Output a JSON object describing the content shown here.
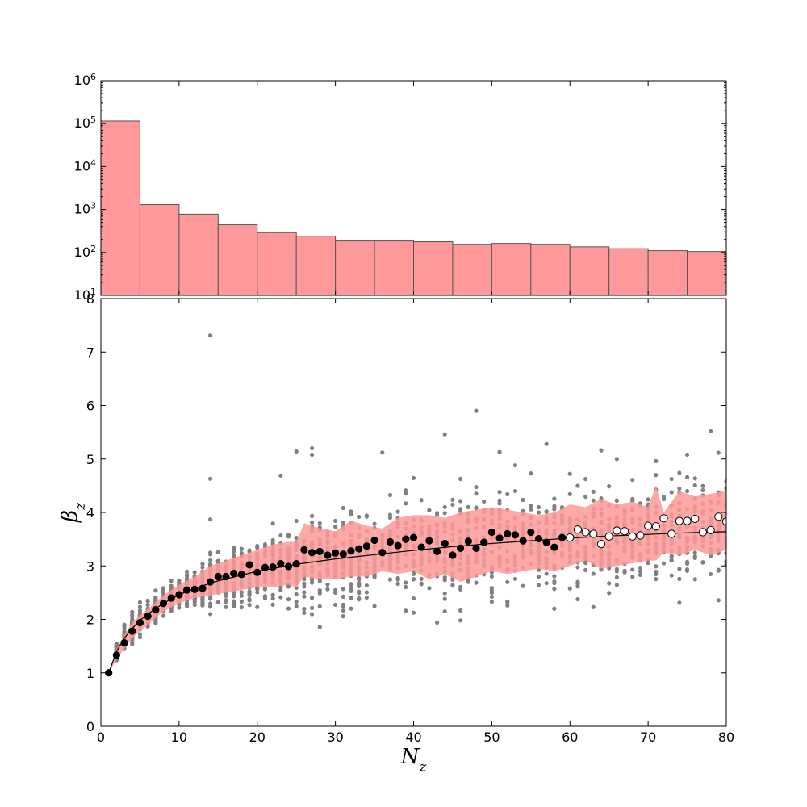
{
  "chart_data": [
    {
      "type": "bar",
      "yscale": "log",
      "xlim": [
        0,
        80
      ],
      "ylim_exp": [
        1,
        6
      ],
      "y_tick_exponents": [
        1,
        2,
        3,
        4,
        5,
        6
      ],
      "bin_width": 5,
      "bin_starts": [
        0,
        5,
        10,
        15,
        20,
        25,
        30,
        35,
        40,
        45,
        50,
        55,
        60,
        65,
        70,
        75
      ],
      "values": [
        115000,
        1300,
        780,
        440,
        290,
        240,
        185,
        185,
        178,
        155,
        162,
        155,
        135,
        122,
        110,
        105
      ],
      "colors": {
        "fill": "#ff9999",
        "edge": "#555555"
      }
    },
    {
      "type": "scatter",
      "xlim": [
        0,
        80
      ],
      "ylim": [
        0,
        8
      ],
      "x_ticks": [
        0,
        10,
        20,
        30,
        40,
        50,
        60,
        70,
        80
      ],
      "y_ticks": [
        0,
        1,
        2,
        3,
        4,
        5,
        6,
        7,
        8
      ],
      "xlabel": "N",
      "xlabel_sub": "z",
      "ylabel": "β",
      "ylabel_sub": "z",
      "colors": {
        "band": "#ff9999",
        "cloud": "#808080",
        "mean": "#000000",
        "fit": "#000000"
      },
      "filled_mean": {
        "x": [
          1,
          2,
          3,
          4,
          5,
          6,
          7,
          8,
          9,
          10,
          11,
          12,
          13,
          14,
          15,
          16,
          17,
          18,
          19,
          20,
          21,
          22,
          23,
          24,
          25,
          26,
          27,
          28,
          29,
          30,
          31,
          32,
          33,
          34,
          35,
          36,
          37,
          38,
          39,
          40,
          41,
          42,
          43,
          44,
          45,
          46,
          47,
          48,
          49,
          50,
          51,
          52,
          53,
          54,
          55,
          56,
          57,
          58,
          59
        ],
        "y": [
          1.0,
          1.33,
          1.56,
          1.78,
          1.94,
          2.06,
          2.18,
          2.3,
          2.4,
          2.46,
          2.55,
          2.56,
          2.58,
          2.7,
          2.8,
          2.8,
          2.86,
          2.84,
          3.02,
          2.88,
          2.97,
          2.98,
          3.04,
          2.99,
          3.04,
          3.3,
          3.25,
          3.27,
          3.2,
          3.24,
          3.22,
          3.28,
          3.32,
          3.37,
          3.48,
          3.25,
          3.45,
          3.38,
          3.5,
          3.53,
          3.35,
          3.47,
          3.27,
          3.42,
          3.2,
          3.33,
          3.46,
          3.33,
          3.44,
          3.63,
          3.52,
          3.6,
          3.58,
          3.47,
          3.63,
          3.51,
          3.44,
          3.35,
          3.53
        ]
      },
      "open_mean": {
        "x": [
          60,
          61,
          62,
          63,
          64,
          65,
          66,
          67,
          68,
          69,
          70,
          71,
          72,
          73,
          74,
          75,
          76,
          77,
          78,
          79,
          80
        ],
        "y": [
          3.53,
          3.68,
          3.63,
          3.6,
          3.41,
          3.55,
          3.66,
          3.65,
          3.55,
          3.57,
          3.75,
          3.74,
          3.89,
          3.6,
          3.84,
          3.84,
          3.88,
          3.63,
          3.67,
          3.92,
          3.83
        ]
      },
      "band": {
        "x": [
          1,
          2,
          4,
          6,
          8,
          10,
          12,
          14,
          16,
          18,
          20,
          22,
          24,
          25,
          26,
          28,
          30,
          32,
          34,
          36,
          38,
          40,
          42,
          44,
          46,
          48,
          50,
          52,
          54,
          56,
          58,
          60,
          62,
          64,
          66,
          68,
          70,
          71,
          72,
          74,
          76,
          78,
          80
        ],
        "upper": [
          1.0,
          1.45,
          1.95,
          2.2,
          2.45,
          2.65,
          2.8,
          3.0,
          3.1,
          3.2,
          3.3,
          3.4,
          3.45,
          3.45,
          3.8,
          3.7,
          3.65,
          3.85,
          3.75,
          3.7,
          3.9,
          3.95,
          3.95,
          3.9,
          4.0,
          4.05,
          4.1,
          4.05,
          4.0,
          3.95,
          4.0,
          4.15,
          4.1,
          4.25,
          4.15,
          4.2,
          4.1,
          4.5,
          4.0,
          4.4,
          4.3,
          4.35,
          4.4
        ],
        "lower": [
          1.0,
          1.25,
          1.65,
          1.9,
          2.15,
          2.3,
          2.4,
          2.45,
          2.5,
          2.55,
          2.6,
          2.6,
          2.65,
          2.6,
          2.8,
          2.75,
          2.75,
          2.8,
          2.8,
          2.9,
          2.85,
          2.9,
          2.75,
          2.85,
          2.7,
          2.8,
          2.9,
          2.85,
          2.9,
          2.95,
          2.9,
          3.0,
          3.1,
          2.95,
          3.0,
          3.05,
          3.1,
          3.1,
          3.25,
          3.2,
          3.3,
          3.2,
          3.3
        ]
      },
      "fit_curve": {
        "x": [
          1,
          2,
          3,
          4,
          5,
          6,
          8,
          10,
          12,
          15,
          20,
          25,
          30,
          35,
          40,
          45,
          50,
          55,
          60,
          65,
          70,
          75,
          80
        ],
        "y": [
          1.0,
          1.4,
          1.65,
          1.83,
          1.98,
          2.1,
          2.3,
          2.46,
          2.58,
          2.72,
          2.9,
          3.03,
          3.13,
          3.21,
          3.29,
          3.36,
          3.42,
          3.47,
          3.52,
          3.56,
          3.59,
          3.62,
          3.64
        ]
      },
      "outliers": {
        "x": [
          14,
          14,
          14,
          25,
          27,
          27,
          23,
          48,
          44,
          57,
          51,
          64,
          66,
          71,
          75,
          78,
          36,
          63,
          55,
          52,
          58,
          46,
          44,
          71,
          66,
          61
        ],
        "y": [
          7.31,
          4.63,
          3.87,
          5.14,
          5.2,
          5.08,
          4.69,
          5.9,
          5.46,
          5.28,
          5.13,
          5.16,
          5.0,
          4.96,
          5.08,
          5.52,
          5.12,
          2.23,
          4.73,
          2.26,
          2.2,
          1.98,
          2.15,
          4.7,
          2.9,
          2.7
        ]
      }
    }
  ]
}
